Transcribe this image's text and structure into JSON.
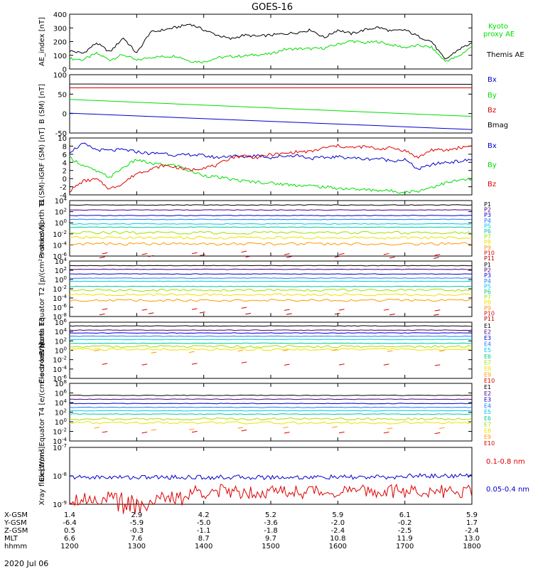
{
  "title": "GOES-16",
  "date_label": "2020 Jul 06",
  "colors": {
    "black": "#000000",
    "green": "#00dd00",
    "blue": "#0000cc",
    "red": "#dd0000",
    "P1": "#000000",
    "P2": "#4b0082",
    "P3": "#0000cc",
    "P4": "#1e78ff",
    "P5": "#00c8e6",
    "P6": "#00c8a0",
    "P7": "#a0e000",
    "P8": "#f0e000",
    "P9": "#ff9900",
    "P10": "#dd0000",
    "P11": "#aa0000"
  },
  "chart_data": [
    {
      "type": "line",
      "ylabel": "AE_index [nT]",
      "ylim": [
        0,
        420
      ],
      "yticks": [
        "400",
        "300",
        "200",
        "100",
        "0"
      ],
      "series": [
        {
          "name": "Kyoto proxy AE",
          "color": "#00dd00",
          "x": [
            0,
            0.2,
            0.4,
            0.6,
            0.8,
            1.0,
            1.2,
            1.4,
            1.6,
            1.8,
            2.0,
            2.2,
            2.4,
            2.6,
            2.8,
            3.0,
            3.2,
            3.4,
            3.6,
            3.8,
            4.0,
            4.2,
            4.4,
            4.6,
            4.8,
            5.0,
            5.2,
            5.4,
            5.6,
            5.8,
            6.0
          ],
          "y": [
            80,
            70,
            120,
            70,
            110,
            65,
            90,
            95,
            100,
            60,
            55,
            85,
            95,
            100,
            110,
            115,
            150,
            155,
            155,
            160,
            190,
            215,
            200,
            210,
            185,
            165,
            180,
            165,
            60,
            95,
            175
          ]
        },
        {
          "name": "Themis AE",
          "color": "#000000",
          "x": [
            0,
            0.2,
            0.4,
            0.6,
            0.8,
            1.0,
            1.2,
            1.4,
            1.6,
            1.8,
            2.0,
            2.2,
            2.4,
            2.6,
            2.8,
            3.0,
            3.2,
            3.4,
            3.6,
            3.8,
            4.0,
            4.2,
            4.4,
            4.6,
            4.8,
            5.0,
            5.2,
            5.4,
            5.6,
            5.8,
            6.0
          ],
          "y": [
            140,
            120,
            200,
            130,
            240,
            120,
            280,
            300,
            320,
            345,
            300,
            260,
            230,
            260,
            250,
            260,
            270,
            280,
            300,
            240,
            300,
            270,
            300,
            320,
            290,
            300,
            250,
            210,
            70,
            150,
            200
          ]
        }
      ]
    },
    {
      "type": "line",
      "ylabel": "B (SM) [nT]",
      "ylim": [
        -60,
        140
      ],
      "yticks": [
        "100",
        "50",
        "0",
        "-50"
      ],
      "series": [
        {
          "name": "Bx",
          "color": "#0000cc",
          "x": [
            0,
            6
          ],
          "y": [
            8,
            -48
          ]
        },
        {
          "name": "By",
          "color": "#00dd00",
          "x": [
            0,
            6
          ],
          "y": [
            55,
            -3
          ]
        },
        {
          "name": "Bz",
          "color": "#dd0000",
          "x": [
            0,
            6
          ],
          "y": [
            95,
            95
          ]
        },
        {
          "name": "Bmag",
          "color": "#000000",
          "x": [
            0,
            6
          ],
          "y": [
            108,
            107
          ]
        }
      ]
    },
    {
      "type": "line",
      "ylabel": "B (SM)-IGRF (SM) [nT]",
      "ylim": [
        -4.5,
        10
      ],
      "yticks": [
        "10",
        "8",
        "6",
        "4",
        "2",
        "0",
        "-2",
        "-4"
      ],
      "series": [
        {
          "name": "Bx",
          "color": "#0000cc",
          "x": [
            0,
            0.2,
            0.4,
            0.6,
            0.8,
            1.0,
            1.2,
            1.4,
            1.6,
            1.8,
            2.0,
            2.2,
            2.4,
            2.6,
            2.8,
            3.0,
            3.2,
            3.4,
            3.6,
            3.8,
            4.0,
            4.2,
            4.4,
            4.6,
            4.8,
            5.0,
            5.2,
            5.4,
            5.6,
            5.8,
            6.0
          ],
          "y": [
            6.5,
            8.5,
            7.0,
            6.8,
            7.0,
            6.5,
            6.0,
            6.2,
            5.5,
            5.8,
            5.5,
            5.0,
            5.5,
            5.2,
            5.6,
            5.0,
            5.4,
            5.6,
            4.8,
            5.0,
            5.2,
            5.0,
            4.6,
            4.8,
            4.2,
            4.5,
            2.0,
            3.2,
            3.8,
            4.0,
            4.5
          ]
        },
        {
          "name": "By",
          "color": "#00dd00",
          "x": [
            0,
            0.2,
            0.4,
            0.6,
            0.8,
            1.0,
            1.2,
            1.4,
            1.6,
            1.8,
            2.0,
            2.2,
            2.4,
            2.6,
            2.8,
            3.0,
            3.2,
            3.4,
            3.6,
            3.8,
            4.0,
            4.2,
            4.4,
            4.6,
            4.8,
            5.0,
            5.2,
            5.4,
            5.6,
            5.8,
            6.0
          ],
          "y": [
            5.0,
            3.0,
            1.5,
            0.0,
            2.5,
            4.5,
            3.5,
            3.2,
            3.0,
            1.5,
            0.5,
            0.0,
            -0.5,
            -1.0,
            -1.2,
            -1.5,
            -1.8,
            -2.0,
            -2.2,
            -2.5,
            -2.8,
            -3.0,
            -3.2,
            -3.3,
            -3.5,
            -3.8,
            -3.5,
            -2.5,
            -1.5,
            -0.8,
            -0.5
          ]
        },
        {
          "name": "Bz",
          "color": "#dd0000",
          "x": [
            0,
            0.2,
            0.4,
            0.6,
            0.8,
            1.0,
            1.2,
            1.4,
            1.6,
            1.8,
            2.0,
            2.2,
            2.4,
            2.6,
            2.8,
            3.0,
            3.2,
            3.4,
            3.6,
            3.8,
            4.0,
            4.2,
            4.4,
            4.6,
            4.8,
            5.0,
            5.2,
            5.4,
            5.6,
            5.8,
            6.0
          ],
          "y": [
            -3.5,
            -1.0,
            -0.5,
            -3.0,
            -1.5,
            1.0,
            2.0,
            3.0,
            2.5,
            1.8,
            2.5,
            3.0,
            5.0,
            5.5,
            5.0,
            5.8,
            6.0,
            6.5,
            6.5,
            7.5,
            8.0,
            7.5,
            7.8,
            7.2,
            7.5,
            6.8,
            5.0,
            7.0,
            6.8,
            7.5,
            8.0
          ]
        }
      ]
    },
    {
      "type": "line",
      "ylabel": "Protons North T1",
      "ylog": true,
      "yticks": [
        "10^4",
        "10^2",
        "10^0",
        "10^-2",
        "10^-4",
        "10^-6"
      ],
      "legend": [
        "P1",
        "P2",
        "P3",
        "P4",
        "P5",
        "P6",
        "P7",
        "P8",
        "P9",
        "P10",
        "P11"
      ],
      "levels": [
        3.2,
        2.3,
        1.3,
        0.6,
        -0.2,
        -0.8,
        -1.8,
        -2.7,
        -3.8,
        -5.6,
        -6.2
      ]
    },
    {
      "type": "line",
      "ylabel": "Protons Equator T2 [p/(cm²-s-sr-keV)]",
      "ylog": true,
      "yticks": [
        "10^4",
        "10^2",
        "10^0",
        "10^-2",
        "10^-4",
        "10^-6",
        "10^-8"
      ],
      "legend": [
        "P1",
        "P2",
        "P3",
        "P4",
        "P5",
        "P6",
        "P7",
        "P8",
        "P9",
        "P10",
        "P11"
      ],
      "levels": [
        3.0,
        2.2,
        1.2,
        0.3,
        -0.4,
        -1.5,
        -2.3,
        -3.3,
        -4.5,
        -6.5,
        -7.5
      ]
    },
    {
      "type": "line",
      "ylabel": "Electrons North T3",
      "ylog": true,
      "yticks": [
        "10^6",
        "10^4",
        "10^2",
        "10^0",
        "10^-2",
        "10^-4",
        "10^-6"
      ],
      "legend": [
        "E1",
        "E2",
        "E3",
        "E4",
        "E5",
        "E6",
        "E7",
        "E8",
        "E9",
        "E10"
      ],
      "levels": [
        5.2,
        4.3,
        3.7,
        3.0,
        2.3,
        1.5,
        0.8,
        0.2,
        -0.3,
        -3.0
      ]
    },
    {
      "type": "line",
      "ylabel": "Electrons Equator T4 [e/(cm²-s-sr-keV)]",
      "ylog": true,
      "yticks": [
        "10^8",
        "10^6",
        "10^4",
        "10^2",
        "10^0",
        "10^-2",
        "10^-4"
      ],
      "legend": [
        "E1",
        "E2",
        "E3",
        "E4",
        "E5",
        "E6",
        "E7",
        "E8",
        "E9",
        "E10"
      ],
      "levels": [
        5.5,
        4.7,
        3.8,
        3.0,
        2.3,
        1.6,
        0.6,
        -0.2,
        -1.5,
        -2.2
      ]
    },
    {
      "type": "line",
      "ylabel": "Xray flux [W/m²]",
      "ylog": true,
      "yticks": [
        "10^-7",
        "10^-8",
        "10^-9"
      ],
      "legend_labels": [
        "0.1-0.8 nm",
        "0.05-0.4 nm"
      ],
      "series": [
        {
          "name": "0.1-0.8 nm",
          "color": "#dd0000",
          "level": -8.55
        },
        {
          "name": "0.05-0.4 nm",
          "color": "#0000cc",
          "level": -8.05
        }
      ]
    }
  ],
  "x_axis": {
    "ticks": [
      "1200",
      "1300",
      "1400",
      "1500",
      "1600",
      "1700",
      "1800"
    ],
    "rows": [
      {
        "label": "X-GSM",
        "values": [
          "1.4",
          "2.9",
          "4.2",
          "5.2",
          "5.9",
          "6.1",
          "5.9"
        ]
      },
      {
        "label": "Y-GSM",
        "values": [
          "-6.4",
          "-5.9",
          "-5.0",
          "-3.6",
          "-2.0",
          "-0.2",
          "1.7"
        ]
      },
      {
        "label": "Z-GSM",
        "values": [
          "0.5",
          "-0.3",
          "-1.1",
          "-1.8",
          "-2.4",
          "-2.5",
          "-2.4"
        ]
      },
      {
        "label": "MLT",
        "values": [
          "6.6",
          "7.6",
          "8.7",
          "9.7",
          "10.8",
          "11.9",
          "13.0"
        ]
      },
      {
        "label": "hhmm",
        "values": [
          "1200",
          "1300",
          "1400",
          "1500",
          "1600",
          "1700",
          "1800"
        ]
      }
    ]
  }
}
